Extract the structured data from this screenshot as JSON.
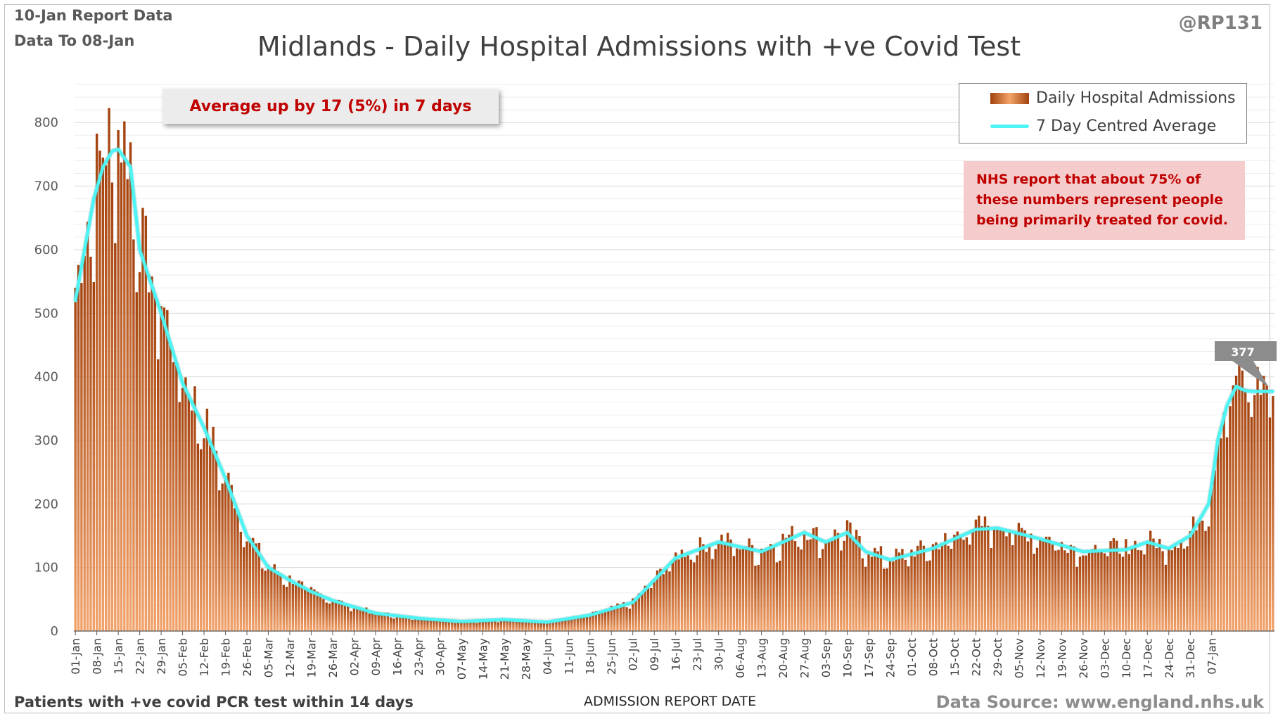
{
  "header": {
    "report_date": "10-Jan Report Data",
    "data_to": "Data To 08-Jan",
    "handle": "@RP131"
  },
  "footer": {
    "footnote": "Patients with +ve covid PCR test within 14 days",
    "source": "Data Source: www.england.nhs.uk"
  },
  "annotations": {
    "average_change": "Average up by 17 (5%) in 7 days",
    "nhs_note": "NHS report that about 75% of these numbers represent people being primarily treated for covid.",
    "last_average_label": "377"
  },
  "colors": {
    "bar": "#b85a20",
    "average_line": "#4ef4f4",
    "title": "#404040",
    "note_text": "#c00000"
  },
  "chart_data": {
    "type": "bar",
    "title": "Midlands - Daily Hospital Admissions with +ve Covid Test",
    "xlabel": "ADMISSION REPORT DATE",
    "ylabel": "",
    "ylim": [
      0,
      860
    ],
    "yticks": [
      0,
      100,
      200,
      300,
      400,
      500,
      600,
      700,
      800
    ],
    "grid": true,
    "legend": "top-right",
    "series_names": [
      "Daily Hospital Admissions",
      "7 Day Centred Average"
    ],
    "anchors": {
      "x_day": [
        0,
        3,
        6,
        9,
        12,
        14,
        18,
        21,
        28,
        35,
        42,
        49,
        56,
        63,
        70,
        77,
        84,
        98,
        112,
        126,
        140,
        154,
        168,
        182,
        189,
        196,
        210,
        224,
        238,
        245,
        252,
        258,
        266,
        280,
        294,
        301,
        315,
        329,
        343,
        350,
        357,
        364,
        370,
        371,
        373,
        376,
        379,
        382,
        385,
        388,
        392
      ],
      "average": [
        520,
        600,
        680,
        730,
        755,
        758,
        730,
        600,
        500,
        390,
        320,
        240,
        150,
        100,
        80,
        62,
        48,
        28,
        20,
        15,
        18,
        14,
        25,
        45,
        80,
        115,
        140,
        125,
        155,
        140,
        155,
        125,
        112,
        130,
        160,
        162,
        145,
        125,
        128,
        140,
        130,
        150,
        200,
        230,
        300,
        355,
        385,
        378,
        377,
        377,
        377
      ]
    },
    "x_ticks": [
      "01-Jan",
      "08-Jan",
      "15-Jan",
      "22-Jan",
      "29-Jan",
      "05-Feb",
      "12-Feb",
      "19-Feb",
      "26-Feb",
      "05-Mar",
      "12-Mar",
      "19-Mar",
      "26-Mar",
      "02-Apr",
      "09-Apr",
      "16-Apr",
      "23-Apr",
      "30-Apr",
      "07-May",
      "14-May",
      "21-May",
      "28-May",
      "04-Jun",
      "11-Jun",
      "18-Jun",
      "25-Jun",
      "02-Jul",
      "09-Jul",
      "16-Jul",
      "23-Jul",
      "30-Jul",
      "06-Aug",
      "13-Aug",
      "20-Aug",
      "27-Aug",
      "03-Sep",
      "10-Sep",
      "17-Sep",
      "24-Sep",
      "01-Oct",
      "08-Oct",
      "15-Oct",
      "22-Oct",
      "29-Oct",
      "05-Nov",
      "12-Nov",
      "19-Nov",
      "26-Nov",
      "03-Dec",
      "10-Dec",
      "17-Dec",
      "24-Dec",
      "31-Dec",
      "07-Jan"
    ],
    "last_average": 377
  }
}
